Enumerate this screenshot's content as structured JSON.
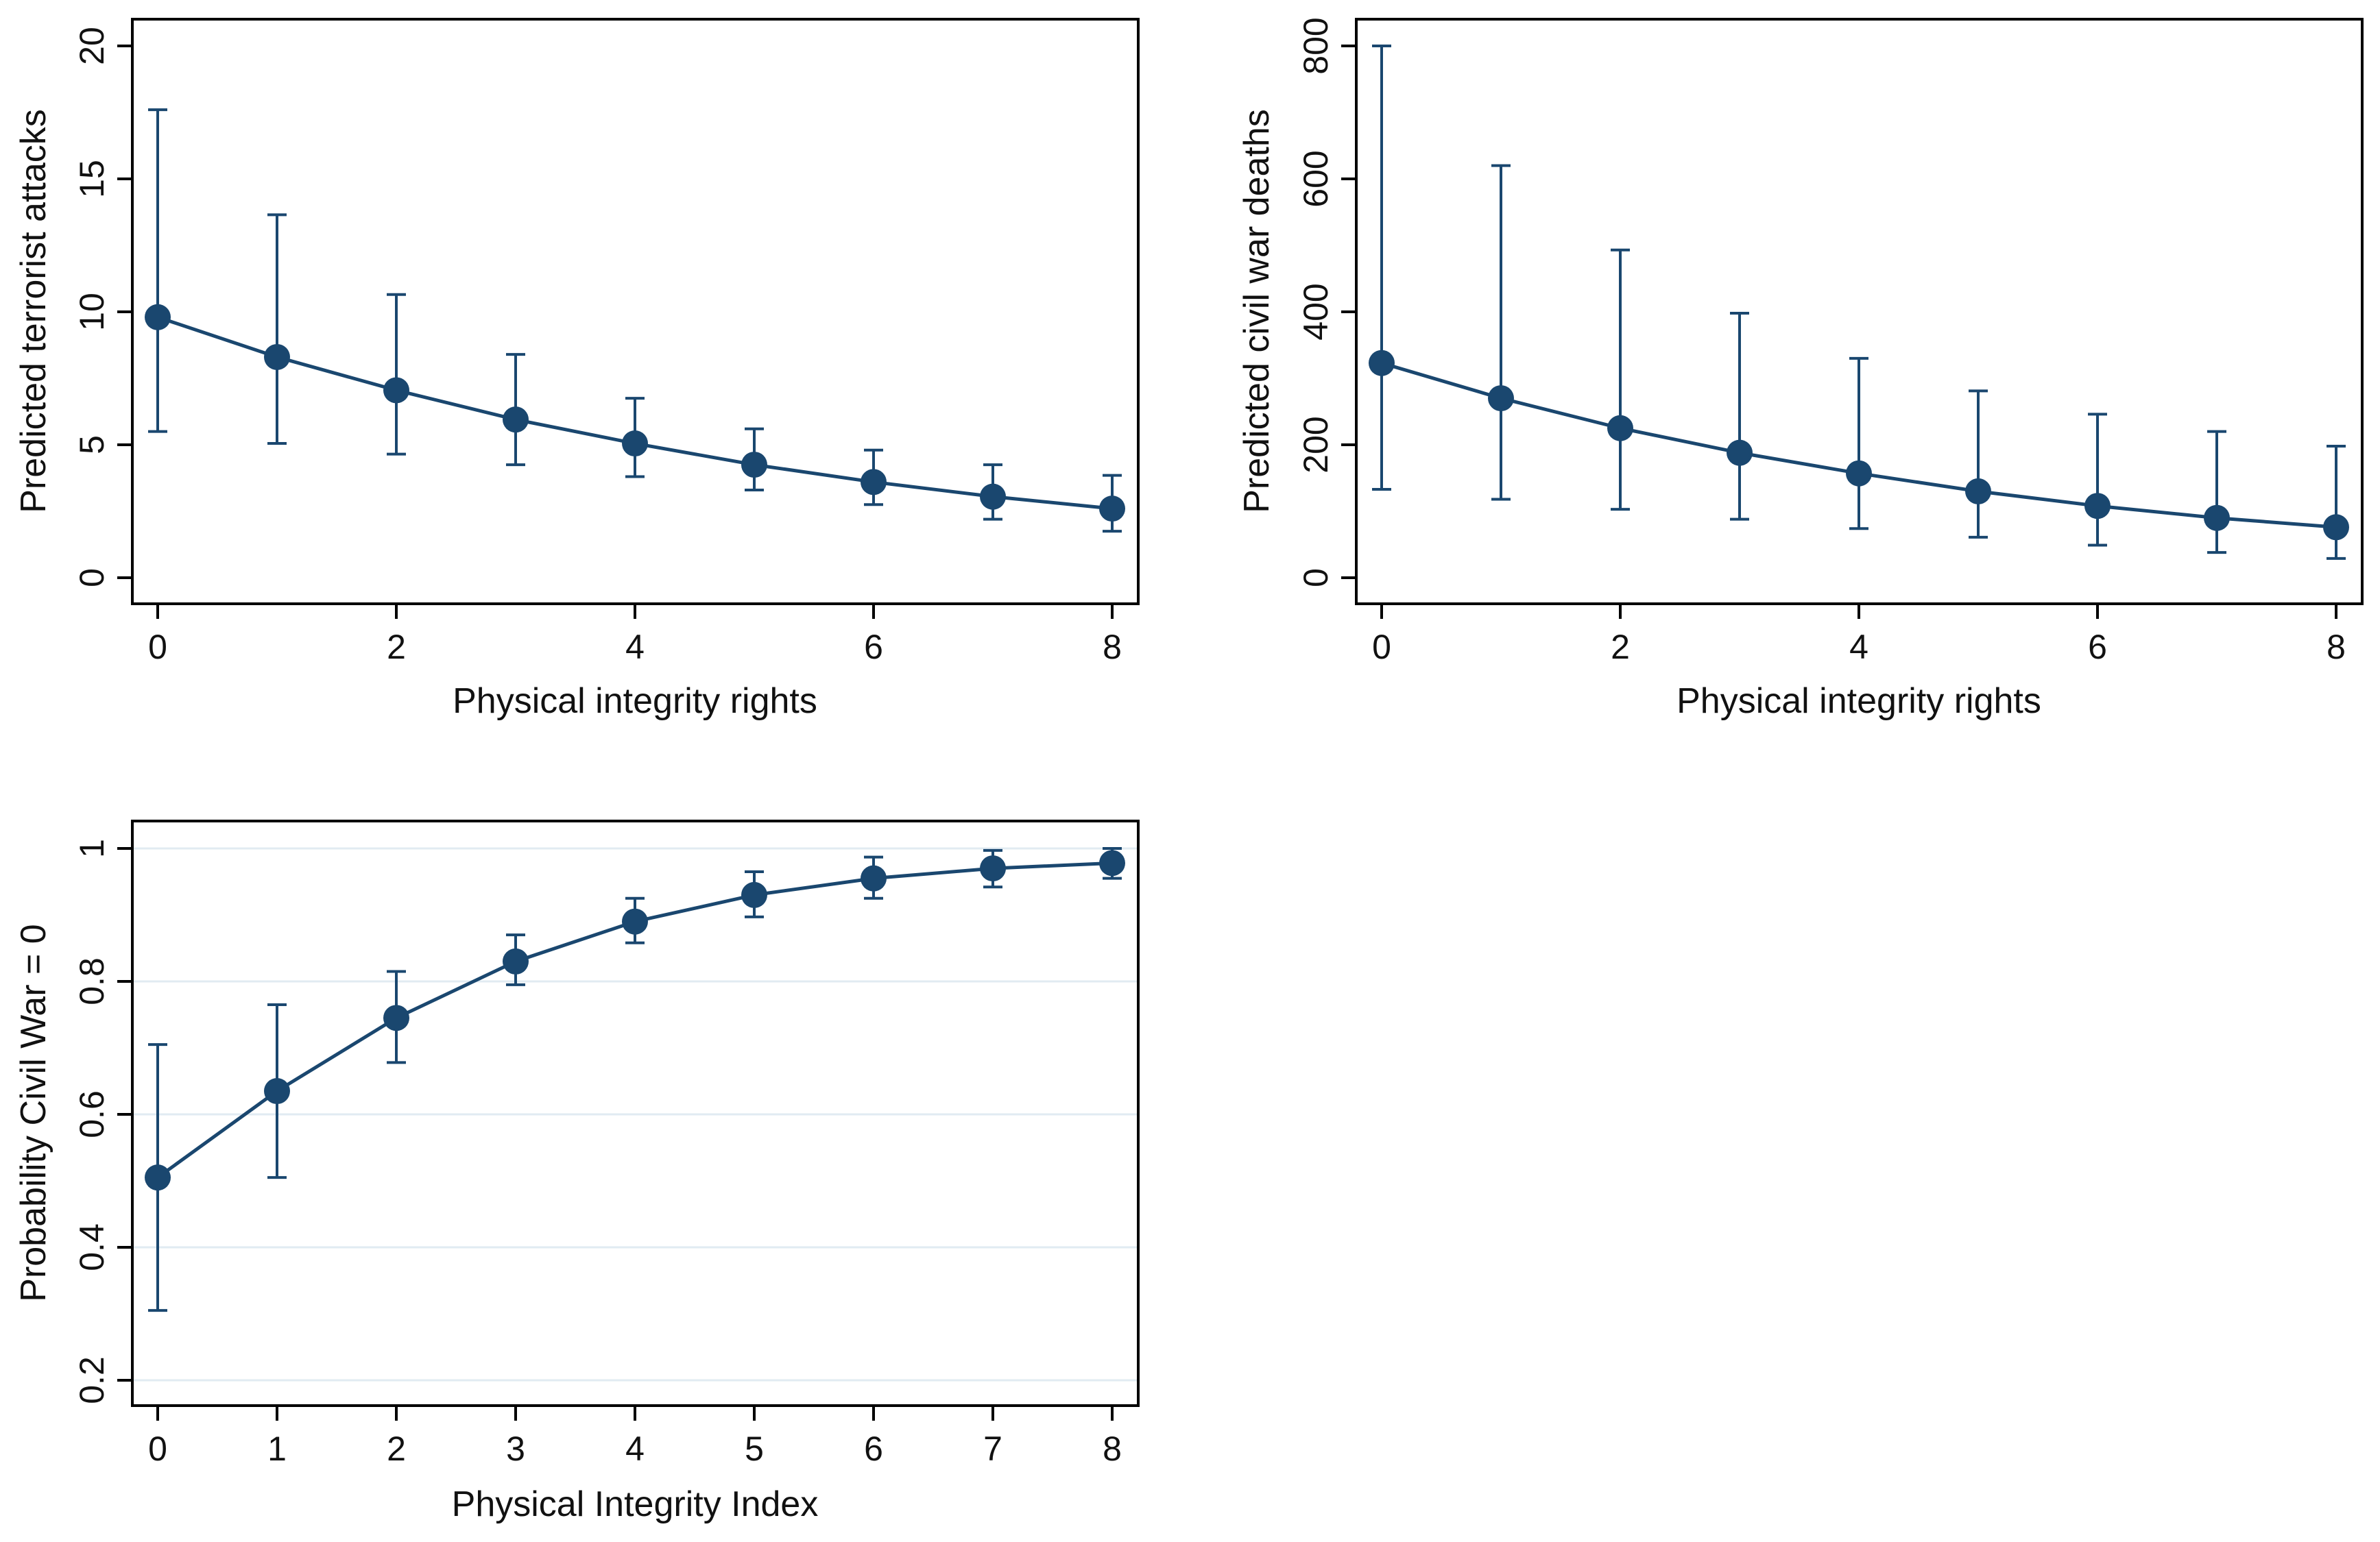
{
  "chart_data": [
    {
      "type": "line",
      "title": "",
      "xlabel": "Physical integrity rights",
      "ylabel": "Predicted terrorist attacks",
      "x": [
        0,
        1,
        2,
        3,
        4,
        5,
        6,
        7,
        8
      ],
      "values": [
        9.8,
        8.3,
        7.05,
        5.95,
        5.05,
        4.25,
        3.6,
        3.05,
        2.6
      ],
      "ci_low": [
        5.5,
        5.05,
        4.65,
        4.25,
        3.8,
        3.3,
        2.75,
        2.2,
        1.75
      ],
      "ci_high": [
        17.6,
        13.65,
        10.65,
        8.4,
        6.75,
        5.6,
        4.8,
        4.25,
        3.85
      ],
      "xlim": [
        0,
        8
      ],
      "ylim": [
        0,
        20
      ],
      "xticks": [
        "0",
        "2",
        "4",
        "6",
        "8"
      ],
      "yticks": [
        "0",
        "5",
        "10",
        "15",
        "20"
      ],
      "grid": false,
      "color": "#1a476f"
    },
    {
      "type": "line",
      "title": "",
      "xlabel": "Physical integrity rights",
      "ylabel": "Predicted civil war deaths",
      "x": [
        0,
        1,
        2,
        3,
        4,
        5,
        6,
        7,
        8
      ],
      "values": [
        323,
        270,
        225,
        188,
        157,
        130,
        108,
        90,
        76
      ],
      "ci_low": [
        133,
        118,
        103,
        88,
        74,
        61,
        49,
        38,
        29
      ],
      "ci_high": [
        800,
        620,
        493,
        398,
        330,
        281,
        246,
        220,
        198
      ],
      "xlim": [
        0,
        8
      ],
      "ylim": [
        0,
        800
      ],
      "xticks": [
        "0",
        "2",
        "4",
        "6",
        "8"
      ],
      "yticks": [
        "0",
        "200",
        "400",
        "600",
        "800"
      ],
      "grid": false,
      "color": "#1a476f"
    },
    {
      "type": "line",
      "title": "",
      "xlabel": "Physical Integrity Index",
      "ylabel": "Probability Civil War = 0",
      "x": [
        0,
        1,
        2,
        3,
        4,
        5,
        6,
        7,
        8
      ],
      "values": [
        0.505,
        0.635,
        0.745,
        0.83,
        0.89,
        0.93,
        0.955,
        0.97,
        0.978
      ],
      "ci_low": [
        0.305,
        0.505,
        0.678,
        0.795,
        0.858,
        0.897,
        0.925,
        0.942,
        0.955
      ],
      "ci_high": [
        0.705,
        0.765,
        0.815,
        0.87,
        0.925,
        0.965,
        0.987,
        0.997,
        1.0
      ],
      "xlim": [
        0,
        8
      ],
      "ylim": [
        0.2,
        1.0
      ],
      "xticks": [
        "0",
        "1",
        "2",
        "3",
        "4",
        "5",
        "6",
        "7",
        "8"
      ],
      "yticks": [
        "0.2",
        "0.4",
        "0.6",
        "0.8",
        "1"
      ],
      "grid": true,
      "color": "#1a476f"
    }
  ]
}
